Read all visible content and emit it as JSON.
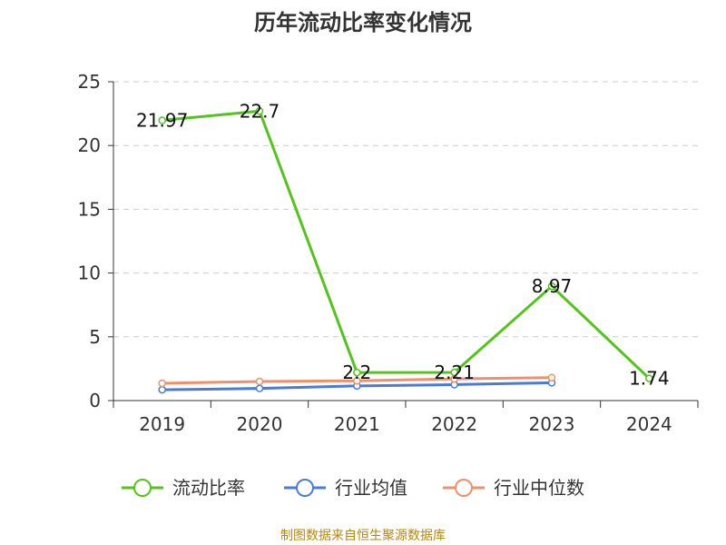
{
  "chart_data": {
    "type": "line",
    "title": "历年流动比率变化情况",
    "categories": [
      "2019",
      "2020",
      "2021",
      "2022",
      "2023",
      "2024"
    ],
    "ylim": [
      0,
      25
    ],
    "yticks": [
      "0",
      "5",
      "10",
      "15",
      "20",
      "25"
    ],
    "grid": true,
    "legend_position": "bottom",
    "series": [
      {
        "name": "流动比率",
        "values": [
          21.97,
          22.7,
          2.2,
          2.21,
          8.97,
          1.74
        ],
        "labels": [
          "21.97",
          "22.7",
          "2.2",
          "2.21",
          "8.97",
          "1.74"
        ],
        "color": "#52c41a"
      },
      {
        "name": "行业均值",
        "values": [
          0.85,
          0.95,
          1.15,
          1.25,
          1.4,
          null
        ],
        "color": "#4a7bdb"
      },
      {
        "name": "行业中位数",
        "values": [
          1.35,
          1.5,
          1.55,
          1.7,
          1.8,
          null
        ],
        "color": "#f0906a"
      }
    ]
  },
  "footer": {
    "source": "制图数据来自恒生聚源数据库"
  }
}
